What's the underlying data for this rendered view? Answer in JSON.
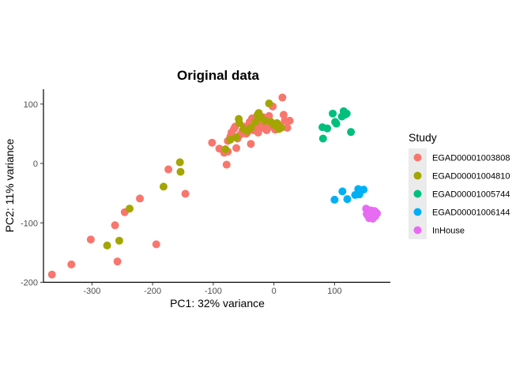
{
  "chart_data": {
    "type": "scatter",
    "title": "Original data",
    "xlabel": "PC1: 32% variance",
    "ylabel": "PC2: 11% variance",
    "xlim": [
      -380,
      192
    ],
    "ylim": [
      -200,
      125
    ],
    "xticks": [
      -300,
      -200,
      -100,
      0,
      100
    ],
    "xtick_labels": [
      "-300",
      "-200",
      "-100",
      "0",
      "100"
    ],
    "yticks": [
      -200,
      -100,
      0,
      100
    ],
    "ytick_labels": [
      "-200",
      "-100",
      "0",
      "100"
    ],
    "grid": false,
    "legend": {
      "title": "Study",
      "position": "right"
    },
    "series": [
      {
        "name": "EGAD00001003808",
        "color": "#F8766D",
        "points": [
          [
            -366,
            -187
          ],
          [
            -334,
            -170
          ],
          [
            -302,
            -128
          ],
          [
            -262,
            -104
          ],
          [
            -258,
            -165
          ],
          [
            -246,
            -82
          ],
          [
            -221,
            -59
          ],
          [
            -194,
            -136
          ],
          [
            -174,
            -10
          ],
          [
            -146,
            -51
          ],
          [
            -102,
            35
          ],
          [
            -90,
            25
          ],
          [
            -82,
            18
          ],
          [
            -78,
            -2
          ],
          [
            -76,
            20
          ],
          [
            -76,
            38
          ],
          [
            -72,
            45
          ],
          [
            -70,
            52
          ],
          [
            -66,
            58
          ],
          [
            -64,
            62
          ],
          [
            -62,
            26
          ],
          [
            -60,
            42
          ],
          [
            -56,
            48
          ],
          [
            -52,
            55
          ],
          [
            -50,
            58
          ],
          [
            -48,
            62
          ],
          [
            -46,
            50
          ],
          [
            -44,
            52
          ],
          [
            -42,
            64
          ],
          [
            -40,
            70
          ],
          [
            -38,
            33
          ],
          [
            -36,
            76
          ],
          [
            -34,
            56
          ],
          [
            -32,
            62
          ],
          [
            -28,
            68
          ],
          [
            -26,
            52
          ],
          [
            -22,
            72
          ],
          [
            -20,
            60
          ],
          [
            -18,
            78
          ],
          [
            -14,
            66
          ],
          [
            -12,
            56
          ],
          [
            -10,
            74
          ],
          [
            -8,
            80
          ],
          [
            -6,
            68
          ],
          [
            -4,
            62
          ],
          [
            -2,
            96
          ],
          [
            2,
            57
          ],
          [
            6,
            58
          ],
          [
            10,
            64
          ],
          [
            14,
            111
          ],
          [
            16,
            82
          ],
          [
            18,
            72
          ],
          [
            22,
            60
          ],
          [
            26,
            72
          ]
        ]
      },
      {
        "name": "EGAD00001004810",
        "color": "#A3A500",
        "points": [
          [
            -275,
            -138
          ],
          [
            -255,
            -130
          ],
          [
            -238,
            -76
          ],
          [
            -182,
            -39
          ],
          [
            -155,
            2
          ],
          [
            -154,
            -14
          ],
          [
            -80,
            24
          ],
          [
            -72,
            40
          ],
          [
            -62,
            44
          ],
          [
            -58,
            75
          ],
          [
            -57,
            68
          ],
          [
            -50,
            58
          ],
          [
            -44,
            55
          ],
          [
            -38,
            60
          ],
          [
            -30,
            70
          ],
          [
            -27,
            82
          ],
          [
            -25,
            85
          ],
          [
            -22,
            78
          ],
          [
            -15,
            72
          ],
          [
            -8,
            101
          ],
          [
            -5,
            70
          ],
          [
            0,
            65
          ],
          [
            5,
            68
          ],
          [
            8,
            58
          ],
          [
            12,
            60
          ]
        ]
      },
      {
        "name": "EGAD00001005744",
        "color": "#00BF7D",
        "points": [
          [
            80,
            61
          ],
          [
            81,
            42
          ],
          [
            88,
            59
          ],
          [
            97,
            84
          ],
          [
            101,
            70
          ],
          [
            103,
            67
          ],
          [
            112,
            79
          ],
          [
            115,
            88
          ],
          [
            117,
            82
          ],
          [
            120,
            84
          ],
          [
            127,
            53
          ]
        ]
      },
      {
        "name": "EGAD00001006144",
        "color": "#00B0F6",
        "points": [
          [
            100,
            -61
          ],
          [
            113,
            -47
          ],
          [
            121,
            -60
          ],
          [
            134,
            -53
          ],
          [
            139,
            -43
          ],
          [
            141,
            -52
          ],
          [
            148,
            -44
          ]
        ]
      },
      {
        "name": "InHouse",
        "color": "#E76BF3",
        "points": [
          [
            152,
            -76
          ],
          [
            153,
            -85
          ],
          [
            155,
            -88
          ],
          [
            156,
            -80
          ],
          [
            157,
            -92
          ],
          [
            158,
            -83
          ],
          [
            159,
            -86
          ],
          [
            160,
            -79
          ],
          [
            161,
            -88
          ],
          [
            162,
            -82
          ],
          [
            163,
            -93
          ],
          [
            164,
            -84
          ],
          [
            165,
            -87
          ],
          [
            166,
            -80
          ],
          [
            167,
            -89
          ],
          [
            168,
            -82
          ],
          [
            168,
            -86
          ],
          [
            170,
            -84
          ]
        ]
      }
    ]
  }
}
